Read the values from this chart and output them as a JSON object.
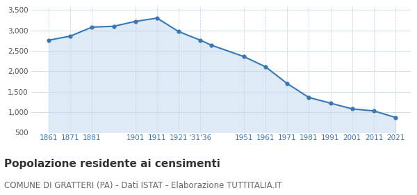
{
  "x_positions": [
    1861,
    1871,
    1881,
    1891,
    1901,
    1911,
    1921,
    1931,
    1936,
    1951,
    1961,
    1971,
    1981,
    1991,
    2001,
    2011,
    2021
  ],
  "x_tick_positions": [
    1861,
    1871,
    1881,
    1901,
    1911,
    1921,
    1931,
    1951,
    1961,
    1971,
    1981,
    1991,
    2001,
    2011,
    2021
  ],
  "x_tick_labels": [
    "1861",
    "1871",
    "1881",
    "1901",
    "1911",
    "1921",
    "'31'36",
    "1951",
    "1961",
    "1971",
    "1981",
    "1991",
    "2001",
    "2011",
    "2021"
  ],
  "values": [
    2760,
    2860,
    3080,
    3100,
    3220,
    3300,
    2970,
    2760,
    2640,
    2360,
    2110,
    1700,
    1360,
    1220,
    1080,
    1030,
    870
  ],
  "line_color": "#3878b4",
  "fill_color": "#deeaf5",
  "marker_color": "#3878b4",
  "background_color": "#ffffff",
  "grid_color": "#c8d8e8",
  "ylim": [
    500,
    3600
  ],
  "yticks": [
    500,
    1000,
    1500,
    2000,
    2500,
    3000,
    3500
  ],
  "title": "Popolazione residente ai censimenti",
  "subtitle": "COMUNE DI GRATTERI (PA) - Dati ISTAT - Elaborazione TUTTITALIA.IT",
  "title_fontsize": 11,
  "subtitle_fontsize": 8.5,
  "tick_color": "#3878b4",
  "tick_fontsize": 7.5,
  "ytick_color": "#555555",
  "xlim": [
    1853,
    2028
  ]
}
